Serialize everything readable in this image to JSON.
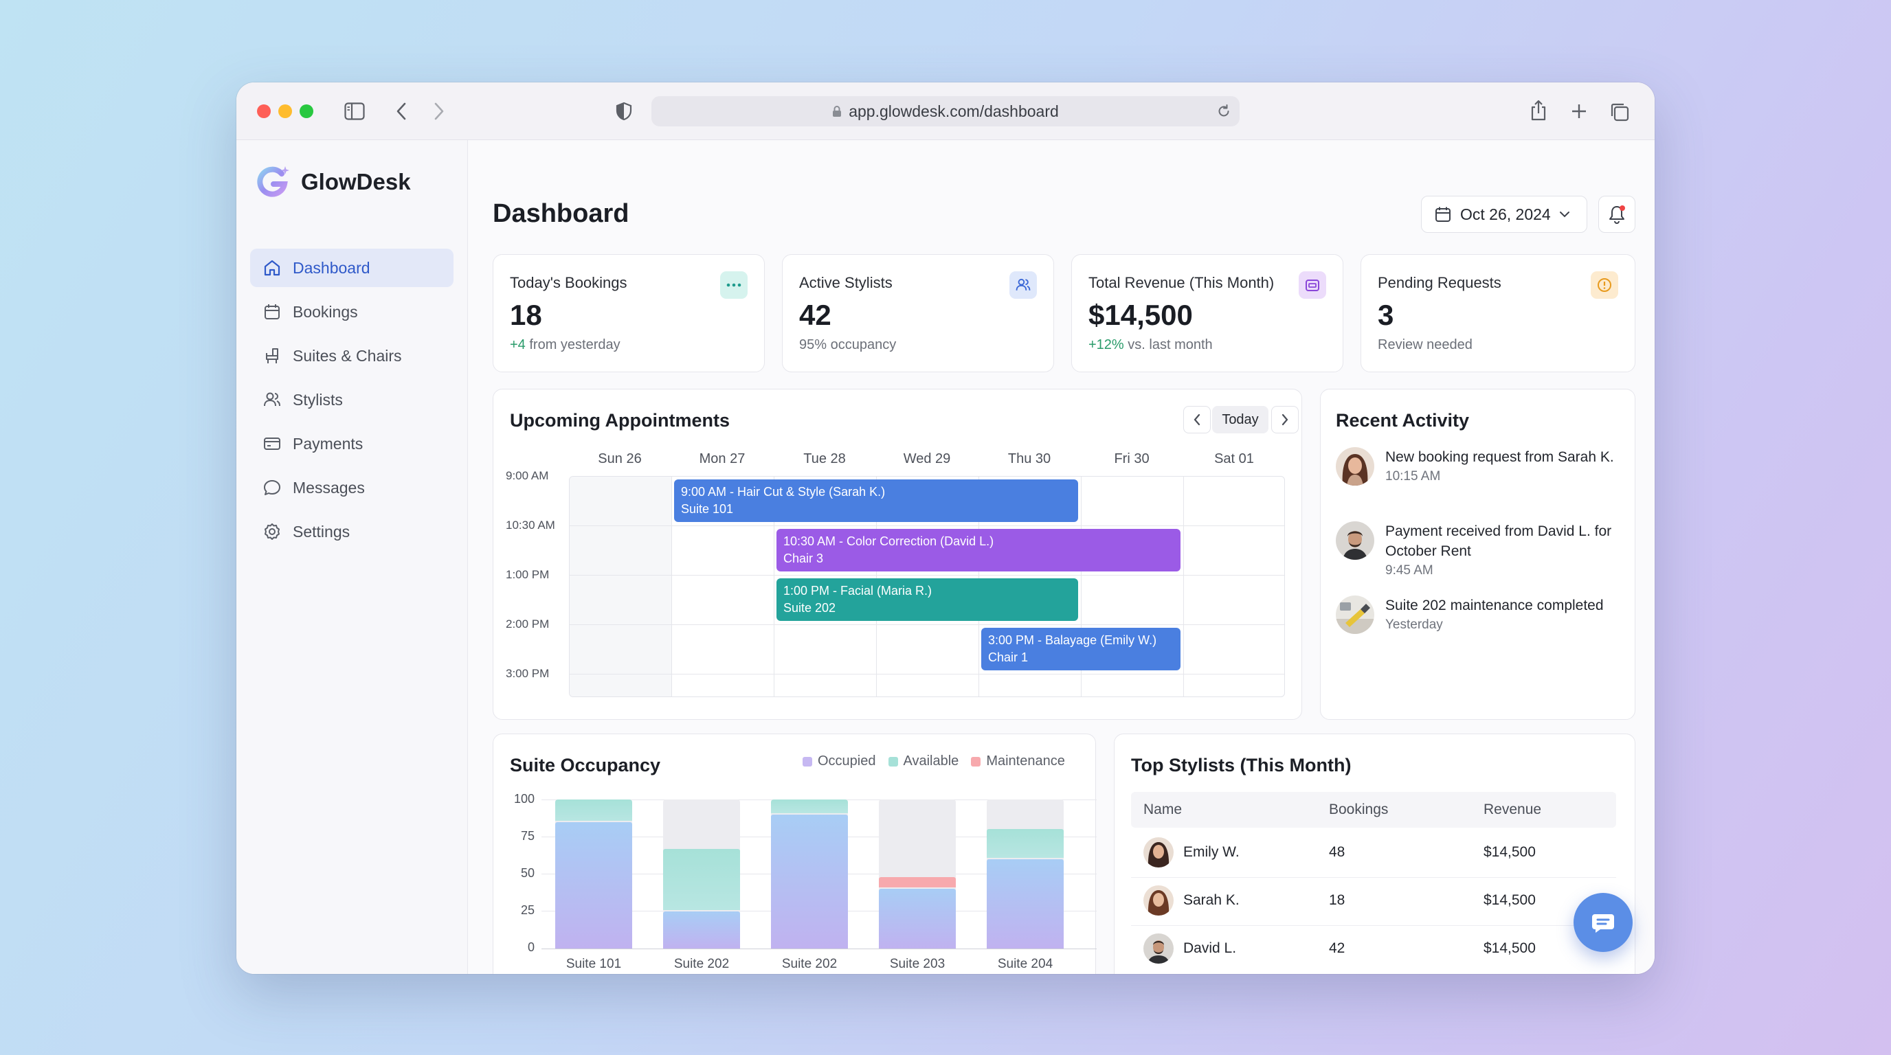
{
  "browser": {
    "url": "app.glowdesk.com/dashboard"
  },
  "app": {
    "name": "GlowDesk",
    "accent": "#2f59c9"
  },
  "sidebar": {
    "items": [
      {
        "label": "Dashboard",
        "icon": "home-icon",
        "active": true
      },
      {
        "label": "Bookings",
        "icon": "calendar-icon",
        "active": false
      },
      {
        "label": "Suites & Chairs",
        "icon": "chair-icon",
        "active": false
      },
      {
        "label": "Stylists",
        "icon": "users-icon",
        "active": false
      },
      {
        "label": "Payments",
        "icon": "credit-card-icon",
        "active": false
      },
      {
        "label": "Messages",
        "icon": "message-icon",
        "active": false
      },
      {
        "label": "Settings",
        "icon": "gear-icon",
        "active": false
      }
    ]
  },
  "header": {
    "title": "Dashboard",
    "date": "Oct 26, 2024"
  },
  "stats": [
    {
      "label": "Today's Bookings",
      "value": "18",
      "delta": "+4",
      "sub": " from yesterday",
      "icon": "dots-icon"
    },
    {
      "label": "Active Stylists",
      "value": "42",
      "delta": "",
      "sub": "95% occupancy",
      "icon": "users-icon"
    },
    {
      "label": "Total Revenue (This Month)",
      "value": "$14,500",
      "delta": "+12%",
      "sub": " vs. last month",
      "icon": "wallet-icon"
    },
    {
      "label": "Pending Requests",
      "value": "3",
      "delta": "",
      "sub": "Review needed",
      "icon": "alert-icon"
    }
  ],
  "appointments": {
    "title": "Upcoming Appointments",
    "today_label": "Today",
    "days": [
      "Sun 26",
      "Mon 27",
      "Tue 28",
      "Wed 29",
      "Thu 30",
      "Fri 30",
      "Sat 01"
    ],
    "times": [
      "9:00 AM",
      "10:30 AM",
      "1:00 PM",
      "2:00 PM",
      "3:00 PM"
    ],
    "events": [
      {
        "line1": "9:00 AM - Hair Cut & Style (Sarah K.)",
        "line2": "Suite 101",
        "color": "#4a7fe0"
      },
      {
        "line1": "10:30 AM - Color Correction (David L.)",
        "line2": "Chair 3",
        "color": "#9b5be6"
      },
      {
        "line1": "1:00 PM - Facial (Maria R.)",
        "line2": "Suite 202",
        "color": "#23a39b"
      },
      {
        "line1": "3:00 PM - Balayage (Emily W.)",
        "line2": "Chair 1",
        "color": "#4a7fe0"
      }
    ]
  },
  "activity": {
    "title": "Recent Activity",
    "items": [
      {
        "text": "New booking request from Sarah K.",
        "time": "10:15 AM"
      },
      {
        "text": "Payment received from David L. for October Rent",
        "time": "9:45 AM"
      },
      {
        "text": "Suite 202 maintenance completed",
        "time": "Yesterday"
      }
    ]
  },
  "occupancy": {
    "title": "Suite Occupancy",
    "legend": [
      "Occupied",
      "Available",
      "Maintenance"
    ]
  },
  "chart_data": {
    "type": "bar",
    "title": "Suite Occupancy",
    "categories": [
      "Suite 101",
      "Suite 202",
      "Suite 202",
      "Suite 203",
      "Suite 204"
    ],
    "series": [
      {
        "name": "Occupied",
        "values": [
          85,
          25,
          90,
          40,
          60
        ],
        "color": "#b9a6f0"
      },
      {
        "name": "Available",
        "values": [
          15,
          42,
          10,
          0,
          20
        ],
        "color": "#a6e1d8"
      },
      {
        "name": "Maintenance",
        "values": [
          0,
          0,
          0,
          8,
          0
        ],
        "color": "#f7a9ad"
      }
    ],
    "y_ticks": [
      "100",
      "75",
      "50",
      "25",
      "0"
    ],
    "ylim": [
      0,
      100
    ],
    "stacked": true,
    "grid": true,
    "legend_position": "top-right"
  },
  "top_stylists": {
    "title": "Top Stylists (This Month)",
    "columns": [
      "Name",
      "Bookings",
      "Revenue"
    ],
    "rows": [
      {
        "name": "Emily W.",
        "bookings": "48",
        "revenue": "$14,500"
      },
      {
        "name": "Sarah K.",
        "bookings": "18",
        "revenue": "$14,500"
      },
      {
        "name": "David L.",
        "bookings": "42",
        "revenue": "$14,500"
      }
    ]
  }
}
